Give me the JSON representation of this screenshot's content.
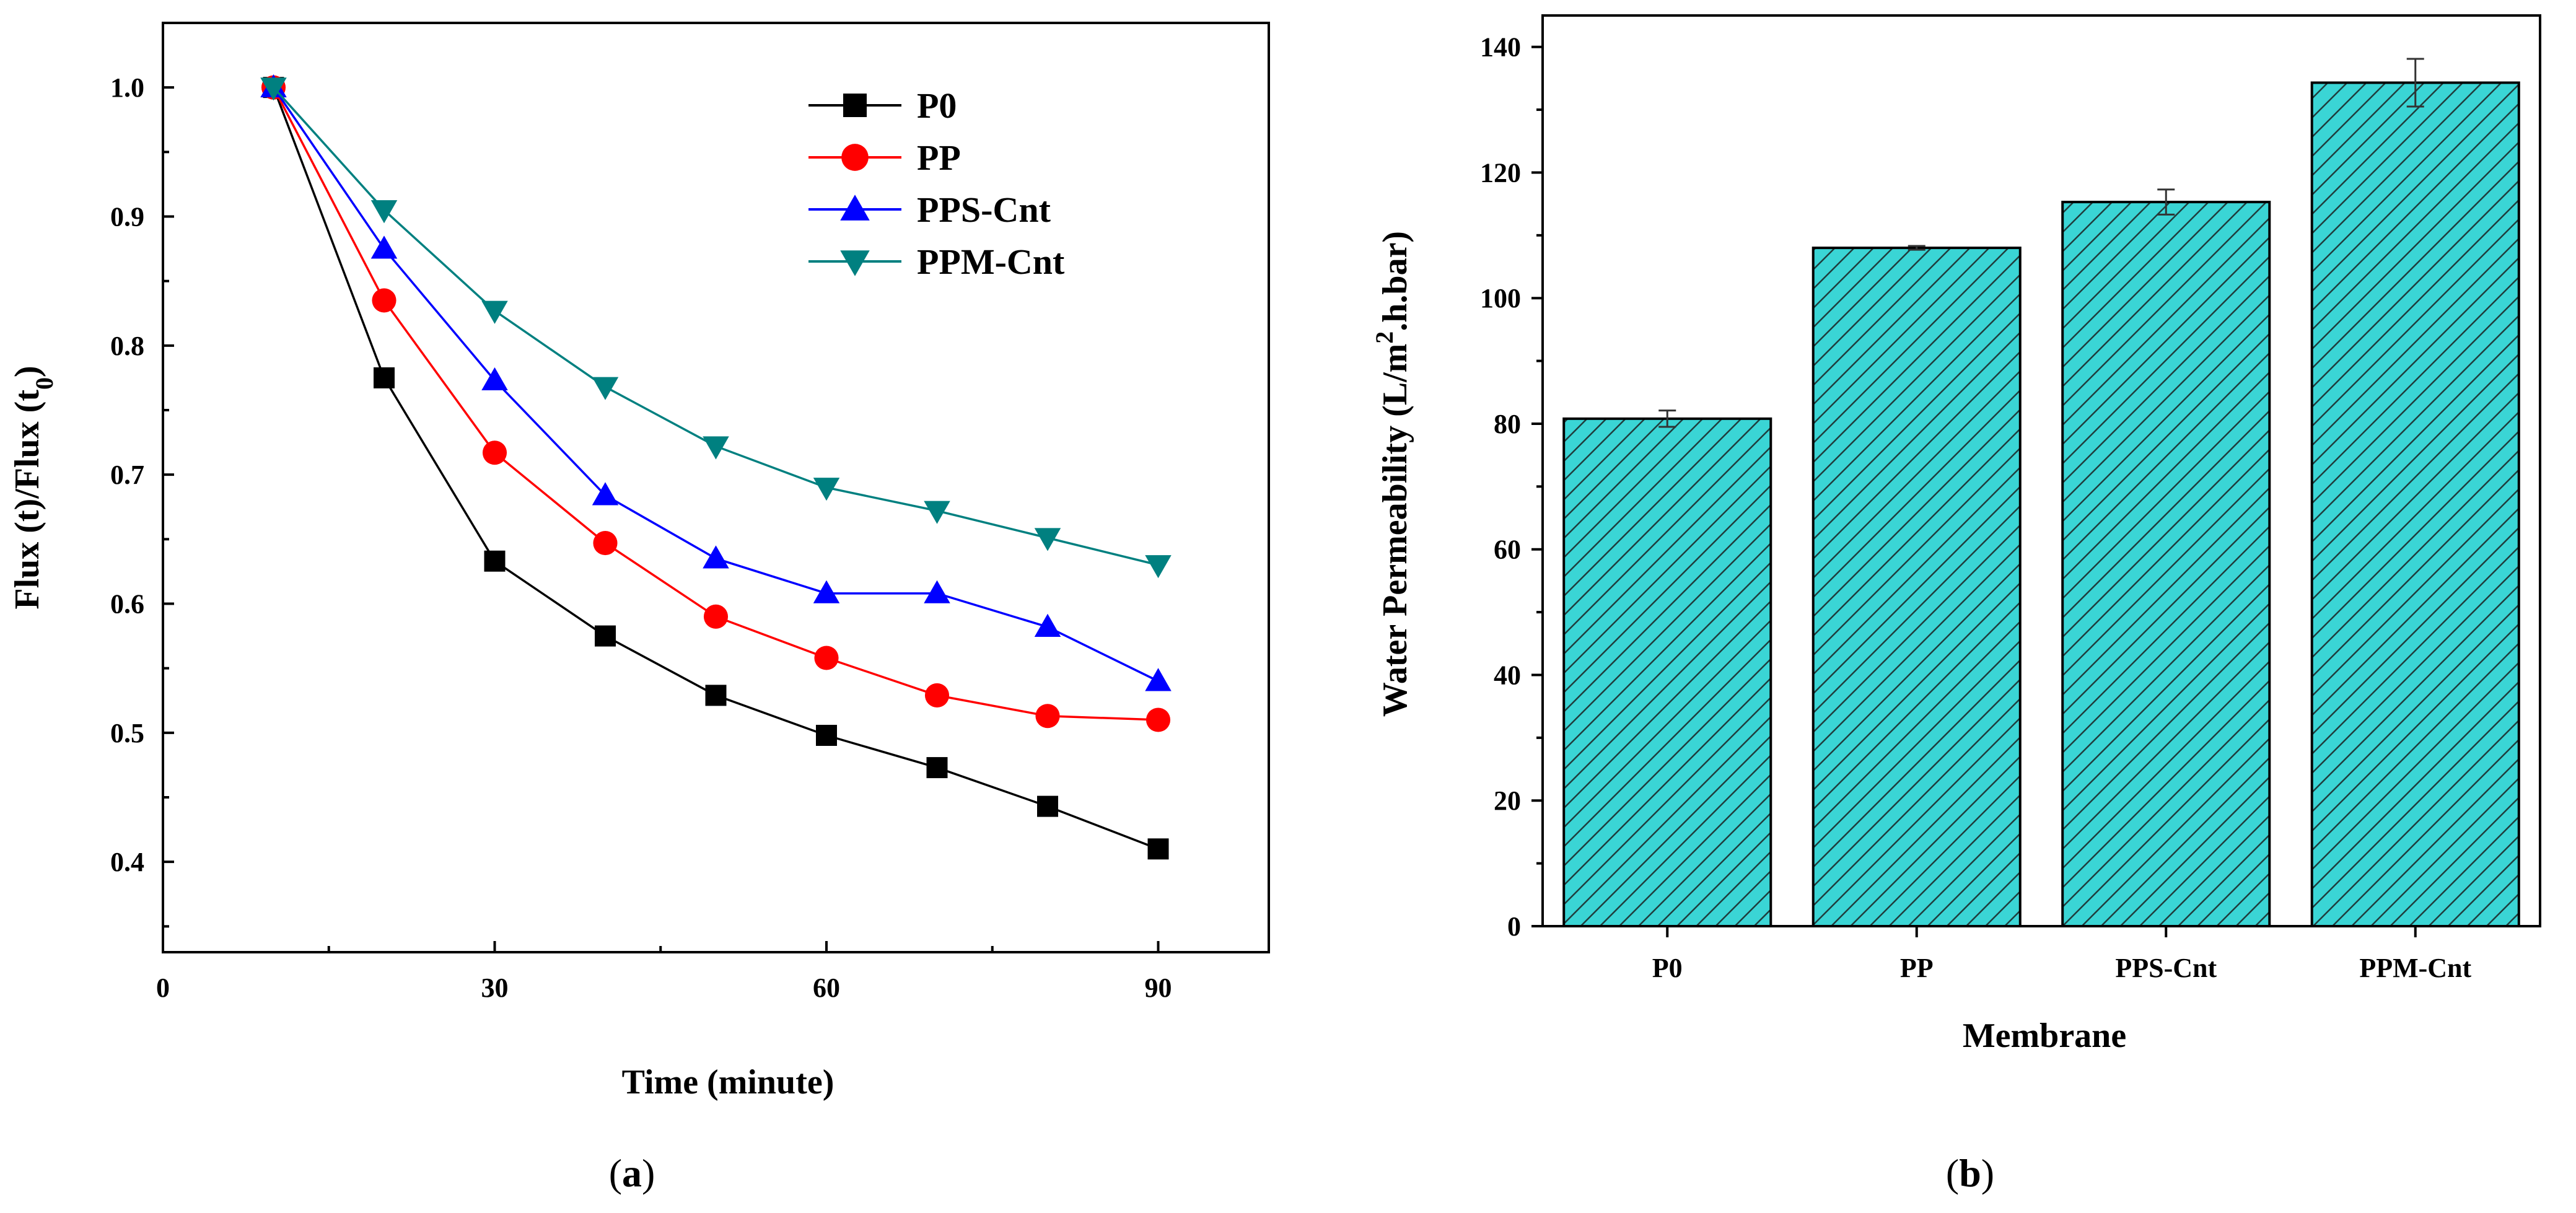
{
  "chart_data": [
    {
      "type": "line",
      "panel_label": "(a)",
      "panel_letter": "a",
      "xlabel": "Time (minute)",
      "ylabel": "Flux (t)/Flux (t",
      "ylabel_sub": "0",
      "ylabel_close": ")",
      "xlim": [
        0,
        100
      ],
      "ylim": [
        0.33,
        1.05
      ],
      "x_ticks": [
        0,
        30,
        60,
        90
      ],
      "x_minor_ticks": [
        15,
        45,
        75
      ],
      "y_ticks": [
        "0.4",
        "0.5",
        "0.6",
        "0.7",
        "0.8",
        "0.9",
        "1.0"
      ],
      "x": [
        10,
        20,
        30,
        40,
        50,
        60,
        70,
        80,
        90
      ],
      "legend_position": "top-right",
      "series": [
        {
          "name": "P0",
          "color": "#000000",
          "marker": "square",
          "values": [
            1.0,
            0.775,
            0.633,
            0.575,
            0.529,
            0.498,
            0.473,
            0.443,
            0.41
          ]
        },
        {
          "name": "PP",
          "color": "#ff0000",
          "marker": "circle",
          "values": [
            1.0,
            0.835,
            0.717,
            0.647,
            0.59,
            0.558,
            0.529,
            0.513,
            0.51
          ]
        },
        {
          "name": "PPS-Cnt",
          "color": "#0000ff",
          "marker": "triangle-up",
          "values": [
            1.0,
            0.875,
            0.773,
            0.684,
            0.635,
            0.608,
            0.608,
            0.582,
            0.54
          ]
        },
        {
          "name": "PPM-Cnt",
          "color": "#008080",
          "marker": "triangle-down",
          "values": [
            1.0,
            0.905,
            0.827,
            0.768,
            0.722,
            0.69,
            0.672,
            0.651,
            0.63
          ]
        }
      ]
    },
    {
      "type": "bar",
      "panel_label": "(b)",
      "panel_letter": "b",
      "xlabel": "Membrane",
      "ylabel": "Water Permeability (L/m",
      "ylabel_sup": "2",
      "ylabel_rest": ".h.bar)",
      "ylim": [
        0,
        145
      ],
      "y_ticks": [
        "0",
        "20",
        "40",
        "60",
        "80",
        "100",
        "120",
        "140"
      ],
      "categories": [
        "P0",
        "PP",
        "PPS-Cnt",
        "PPM-Cnt"
      ],
      "values": [
        80.8,
        108.0,
        115.3,
        134.3
      ],
      "errors": [
        1.3,
        0.3,
        2.0,
        3.8
      ],
      "bar_color": "#3ad5d5",
      "hatch": "diagonal"
    }
  ]
}
